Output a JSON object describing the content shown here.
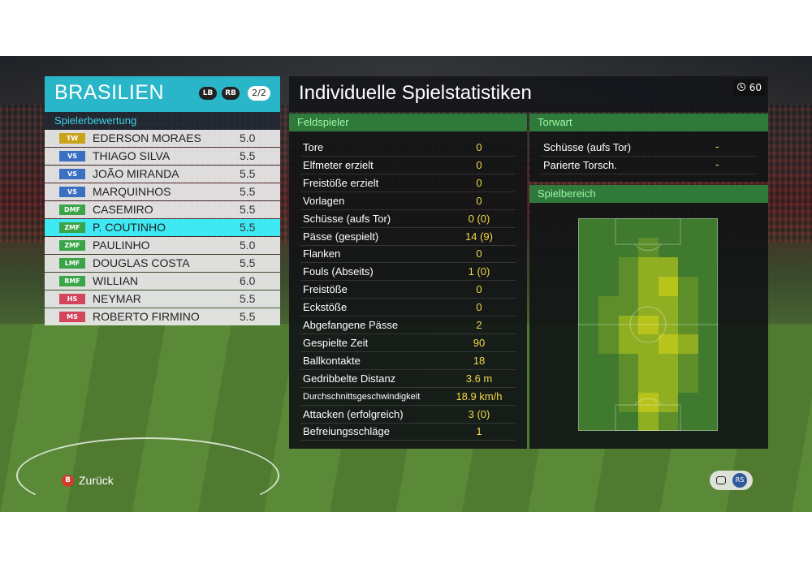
{
  "team": {
    "name": "BRASILIEN",
    "button_lb": "LB",
    "button_rb": "RB",
    "page": "2/2"
  },
  "ratings_header": "Spielerbewertung",
  "players": [
    {
      "pos": "TW",
      "pos_color": "#c9a318",
      "name": "EDERSON MORAES",
      "rating": "5.0"
    },
    {
      "pos": "VS",
      "pos_color": "#3a6fc2",
      "name": "THIAGO SILVA",
      "rating": "5.5"
    },
    {
      "pos": "VS",
      "pos_color": "#3a6fc2",
      "name": "JOÃO MIRANDA",
      "rating": "5.5"
    },
    {
      "pos": "VS",
      "pos_color": "#3a6fc2",
      "name": "MARQUINHOS",
      "rating": "5.5"
    },
    {
      "pos": "DMF",
      "pos_color": "#3aa448",
      "name": "CASEMIRO",
      "rating": "5.5"
    },
    {
      "pos": "ZMF",
      "pos_color": "#3aa448",
      "name": "P. COUTINHO",
      "rating": "5.5",
      "active": true
    },
    {
      "pos": "ZMF",
      "pos_color": "#3aa448",
      "name": "PAULINHO",
      "rating": "5.0"
    },
    {
      "pos": "LMF",
      "pos_color": "#3aa448",
      "name": "DOUGLAS COSTA",
      "rating": "5.5"
    },
    {
      "pos": "RMF",
      "pos_color": "#3aa448",
      "name": "WILLIAN",
      "rating": "6.0"
    },
    {
      "pos": "HS",
      "pos_color": "#d2455a",
      "name": "NEYMAR",
      "rating": "5.5"
    },
    {
      "pos": "MS",
      "pos_color": "#d2455a",
      "name": "ROBERTO FIRMINO",
      "rating": "5.5"
    }
  ],
  "title": "Individuelle Spielstatistiken",
  "timer": "60",
  "field_header": "Feldspieler",
  "field_stats": [
    {
      "label": "Tore",
      "value": "0"
    },
    {
      "label": "Elfmeter erzielt",
      "value": "0"
    },
    {
      "label": "Freistöße erzielt",
      "value": "0"
    },
    {
      "label": "Vorlagen",
      "value": "0"
    },
    {
      "label": "Schüsse (aufs Tor)",
      "value": "0 (0)"
    },
    {
      "label": "Pässe (gespielt)",
      "value": "14 (9)"
    },
    {
      "label": "Flanken",
      "value": "0"
    },
    {
      "label": "Fouls (Abseits)",
      "value": "1 (0)"
    },
    {
      "label": "Freistöße",
      "value": "0"
    },
    {
      "label": "Eckstöße",
      "value": "0"
    },
    {
      "label": "Abgefangene Pässe",
      "value": "2"
    },
    {
      "label": "Gespielte Zeit",
      "value": "90"
    },
    {
      "label": "Ballkontakte",
      "value": "18"
    },
    {
      "label": "Gedribbelte Distanz",
      "value": "3.6 m"
    },
    {
      "label": "Durchschnittsgeschwindigkeit",
      "value": "18.9 km/h",
      "small": true
    },
    {
      "label": "Attacken (erfolgreich)",
      "value": "3 (0)"
    },
    {
      "label": "Befreiungsschläge",
      "value": "1"
    }
  ],
  "gk_header": "Torwart",
  "gk_stats": [
    {
      "label": "Schüsse (aufs Tor)",
      "value": "-"
    },
    {
      "label": "Parierte Torsch.",
      "value": "-"
    }
  ],
  "area_header": "Spielbereich",
  "heatmap": {
    "cols": 7,
    "rows": 11,
    "levels": [
      [
        0,
        0,
        0,
        0,
        0,
        0,
        0
      ],
      [
        0,
        0,
        0,
        1,
        0,
        0,
        0
      ],
      [
        0,
        0,
        1,
        2,
        2,
        0,
        0
      ],
      [
        0,
        0,
        1,
        2,
        3,
        1,
        0
      ],
      [
        0,
        1,
        1,
        2,
        2,
        1,
        0
      ],
      [
        0,
        1,
        2,
        3,
        2,
        1,
        0
      ],
      [
        0,
        1,
        2,
        2,
        3,
        2,
        0
      ],
      [
        0,
        0,
        1,
        2,
        2,
        1,
        0
      ],
      [
        0,
        0,
        1,
        2,
        2,
        1,
        0
      ],
      [
        0,
        0,
        1,
        3,
        2,
        0,
        0
      ],
      [
        0,
        0,
        0,
        2,
        1,
        0,
        0
      ]
    ],
    "colors": [
      "#3f7a2f",
      "#5e8e2a",
      "#8fae22",
      "#b8c41c"
    ]
  },
  "footer": {
    "back_button": "B",
    "back_label": "Zurück",
    "toggle_right": "RS"
  }
}
